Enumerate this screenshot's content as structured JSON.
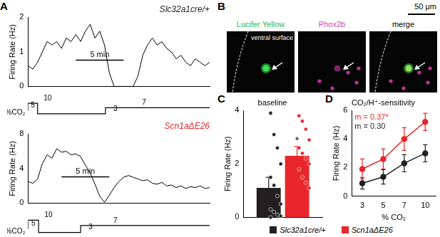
{
  "panel_labels": [
    "A",
    "B",
    "C",
    "D"
  ],
  "chart_data": [
    {
      "type": "line",
      "title": "Slc32a1cre/+",
      "y_label": "Firing Rate (Hz)",
      "color": "#000000",
      "x": [
        0,
        0.5,
        1,
        1.5,
        2,
        2.5,
        3,
        3.5,
        4,
        4.5,
        5,
        5.5,
        6,
        6.5,
        7,
        7.5,
        8,
        8.5,
        9,
        9.5,
        10,
        10.5,
        11,
        11.5,
        12,
        12.5,
        13,
        13.5,
        14,
        14.5,
        15,
        15.5,
        16,
        16.5,
        17,
        17.5,
        18,
        18.5,
        19
      ],
      "values": [
        0.6,
        0.5,
        0.7,
        1.0,
        1.3,
        1.2,
        1.3,
        1.1,
        1.4,
        1.3,
        1.5,
        1.3,
        1.6,
        1.8,
        1.4,
        1.6,
        1.2,
        0.4,
        0,
        0,
        0,
        0,
        0,
        0.3,
        0.9,
        1.2,
        1.4,
        1.2,
        1.3,
        1.1,
        1.0,
        0.8,
        0.9,
        0.7,
        0.6,
        0.8,
        0.7,
        0.6,
        0.7
      ],
      "xlim": [
        0,
        19
      ],
      "xticks": [],
      "ylim": [
        0,
        2
      ],
      "yticks": [
        0,
        1,
        2
      ],
      "tick_labels": "y",
      "grid": false,
      "scale_bar": {
        "label": "5 min",
        "length": 5,
        "start": 5
      },
      "co2": {
        "type": "line",
        "label": "%CO₂",
        "x": [
          0,
          1,
          8.1,
          11.1
        ],
        "values": [
          5,
          10,
          3,
          7
        ],
        "color": "#000000",
        "xlim": [
          0,
          19
        ],
        "xticks": [],
        "ylim": [
          2,
          11
        ],
        "yticks": [],
        "tick_labels": false,
        "data_labels": true,
        "line_style": "stepped"
      }
    },
    {
      "type": "line",
      "title": "Scn1aΔE26",
      "y_label": "Firing Rate (Hz)",
      "color": "#000000",
      "x": [
        0,
        0.5,
        1,
        1.5,
        2,
        2.5,
        3,
        3.5,
        4,
        4.5,
        5,
        5.5,
        6,
        6.5,
        7,
        7.5,
        8,
        8.5,
        9,
        9.5,
        10,
        10.5,
        11,
        11.5,
        12,
        12.5,
        13,
        13.5,
        14,
        14.5,
        15,
        15.5,
        16,
        16.5,
        17,
        17.5,
        18,
        18.5,
        19
      ],
      "values": [
        2.5,
        2.3,
        2.8,
        4.6,
        5.6,
        5.2,
        6.3,
        5.9,
        6.0,
        5.6,
        5.7,
        5.4,
        4.4,
        3.5,
        2.2,
        0.8,
        0.1,
        0.9,
        1.8,
        2.5,
        3.0,
        3.2,
        3.0,
        2.8,
        2.6,
        2.7,
        2.3,
        2.2,
        2.4,
        2.0,
        2.1,
        1.8,
        2.0,
        1.7,
        1.9,
        1.8,
        2.0,
        1.7,
        1.8
      ],
      "xlim": [
        0,
        19
      ],
      "xticks": [],
      "ylim": [
        0,
        8
      ],
      "yticks": [
        0,
        4,
        8
      ],
      "tick_labels": "y",
      "grid": false,
      "scale_bar": {
        "label": "5 min",
        "length": 5,
        "start": 3.5
      },
      "co2": {
        "type": "line",
        "label": "%CO₂",
        "x": [
          0,
          1.1,
          5.5,
          8.1
        ],
        "values": [
          5,
          10,
          3,
          7
        ],
        "color": "#000000",
        "xlim": [
          0,
          19
        ],
        "xticks": [],
        "ylim": [
          2,
          11
        ],
        "yticks": [],
        "tick_labels": false,
        "data_labels": true,
        "line_style": "stepped"
      }
    },
    {
      "type": "bar",
      "title": "baseline",
      "y_label": "Firing Rate (Hz)",
      "categories": [
        null
      ],
      "series": [
        {
          "name": "Slc32a1cre/+",
          "color": "#231f20",
          "values": [
            1.1
          ],
          "errors": [
            0.4
          ],
          "points": [
            3.9,
            3.1,
            2.6,
            2.0,
            1.5,
            1.2,
            0.8,
            0.5,
            0.3,
            0.2,
            0.1,
            0.05,
            0
          ]
        },
        {
          "name": "Scn1aΔE26",
          "color": "#e8262b",
          "values": [
            2.3
          ],
          "errors": [
            0.35
          ],
          "points": [
            3.8,
            3.6,
            3.3,
            2.9,
            2.6,
            2.4,
            2.2,
            2.0,
            1.8,
            1.5,
            1.3,
            1.1
          ]
        }
      ],
      "ylim": [
        0,
        4
      ],
      "yticks": [
        0,
        2,
        4
      ],
      "tick_labels": "y",
      "grid": false,
      "legend": "bottom",
      "annotations": [
        {
          "text": "*",
          "series": 1
        }
      ]
    },
    {
      "type": "line",
      "title": "CO₂/H⁺-sensitivity",
      "x_label": "% CO₂",
      "y_label": "Firing Rate (Hz)",
      "categories": [
        3,
        5,
        7,
        10
      ],
      "series": [
        {
          "name": "Slc32a1cre/+",
          "color": "#231f20",
          "values": [
            0.9,
            1.35,
            2.3,
            3.0
          ],
          "errors": [
            0.4,
            0.5,
            0.6,
            0.6
          ]
        },
        {
          "name": "Scn1aΔE26",
          "color": "#e8262b",
          "values": [
            1.9,
            2.6,
            4.0,
            5.2
          ],
          "errors": [
            0.7,
            0.7,
            0.8,
            0.6
          ]
        }
      ],
      "ylim": [
        0,
        6
      ],
      "yticks": [
        0,
        2,
        4,
        6
      ],
      "grid": false,
      "marker": "circle",
      "annotations": [
        {
          "text": "m = 0.37*",
          "series": 1
        },
        {
          "text": "m = 0.30",
          "series": 0
        }
      ]
    }
  ],
  "image_panel": {
    "panels": [
      {
        "label": "Lucifer Yellow",
        "color": "#2fb34a"
      },
      {
        "label": "Phox2b",
        "color": "#d63fb5"
      },
      {
        "label": "merge",
        "color": "#000000"
      }
    ],
    "annotation": "ventral surface",
    "scale_bar": "50 μm"
  }
}
